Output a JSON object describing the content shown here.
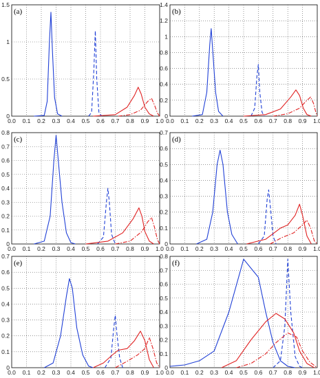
{
  "chart_data": [
    {
      "panel": "(a)",
      "type": "line",
      "xlim": [
        0,
        1
      ],
      "ylim": [
        0,
        1.5
      ],
      "grid": true,
      "xticks": [
        "0.0",
        "0.1",
        "0.2",
        "0.3",
        "0.4",
        "0.5",
        "0.6",
        "0.7",
        "0.8",
        "0.9",
        "1.0"
      ],
      "yticks": [
        "0",
        "0.5",
        "1",
        "1.5"
      ],
      "series": [
        {
          "color": "#1f3fd6",
          "dash": "solid",
          "points": [
            [
              0.15,
              0
            ],
            [
              0.22,
              0.01
            ],
            [
              0.24,
              0.2
            ],
            [
              0.255,
              1.0
            ],
            [
              0.265,
              1.4
            ],
            [
              0.275,
              0.9
            ],
            [
              0.29,
              0.25
            ],
            [
              0.31,
              0.03
            ],
            [
              0.34,
              0
            ]
          ]
        },
        {
          "color": "#1f3fd6",
          "dash": "dashed",
          "points": [
            [
              0.52,
              0
            ],
            [
              0.54,
              0.05
            ],
            [
              0.555,
              0.6
            ],
            [
              0.565,
              1.15
            ],
            [
              0.575,
              0.5
            ],
            [
              0.59,
              0.04
            ],
            [
              0.61,
              0
            ]
          ]
        },
        {
          "color": "#e02020",
          "dash": "solid",
          "points": [
            [
              0.55,
              0
            ],
            [
              0.7,
              0.02
            ],
            [
              0.78,
              0.12
            ],
            [
              0.83,
              0.28
            ],
            [
              0.855,
              0.39
            ],
            [
              0.875,
              0.3
            ],
            [
              0.9,
              0.12
            ],
            [
              0.93,
              0.03
            ],
            [
              0.96,
              0
            ]
          ]
        },
        {
          "color": "#e02020",
          "dash": "dashdot",
          "points": [
            [
              0.72,
              0
            ],
            [
              0.8,
              0.02
            ],
            [
              0.87,
              0.08
            ],
            [
              0.92,
              0.2
            ],
            [
              0.945,
              0.24
            ],
            [
              0.965,
              0.15
            ],
            [
              0.985,
              0.04
            ],
            [
              1.0,
              0
            ]
          ]
        }
      ]
    },
    {
      "panel": "(b)",
      "type": "line",
      "xlim": [
        0,
        1
      ],
      "ylim": [
        0,
        1.4
      ],
      "grid": true,
      "xticks": [
        "0.0",
        "0.1",
        "0.2",
        "0.3",
        "0.4",
        "0.5",
        "0.6",
        "0.7",
        "0.8",
        "0.9",
        "1.0"
      ],
      "yticks": [
        "0",
        "0.2",
        "0.4",
        "0.6",
        "0.8",
        "1",
        "1.2",
        "1.4"
      ],
      "series": [
        {
          "color": "#1f3fd6",
          "dash": "solid",
          "points": [
            [
              0.15,
              0
            ],
            [
              0.22,
              0.02
            ],
            [
              0.25,
              0.3
            ],
            [
              0.27,
              0.9
            ],
            [
              0.28,
              1.1
            ],
            [
              0.295,
              0.7
            ],
            [
              0.31,
              0.3
            ],
            [
              0.33,
              0.06
            ],
            [
              0.36,
              0
            ]
          ]
        },
        {
          "color": "#1f3fd6",
          "dash": "dashed",
          "points": [
            [
              0.55,
              0
            ],
            [
              0.575,
              0.1
            ],
            [
              0.59,
              0.5
            ],
            [
              0.6,
              0.65
            ],
            [
              0.61,
              0.3
            ],
            [
              0.625,
              0.05
            ],
            [
              0.64,
              0
            ]
          ]
        },
        {
          "color": "#e02020",
          "dash": "solid",
          "points": [
            [
              0.5,
              0
            ],
            [
              0.65,
              0.02
            ],
            [
              0.75,
              0.09
            ],
            [
              0.82,
              0.24
            ],
            [
              0.855,
              0.33
            ],
            [
              0.88,
              0.26
            ],
            [
              0.905,
              0.1
            ],
            [
              0.93,
              0.02
            ],
            [
              0.96,
              0
            ]
          ]
        },
        {
          "color": "#e02020",
          "dash": "dashdot",
          "points": [
            [
              0.7,
              0
            ],
            [
              0.8,
              0.03
            ],
            [
              0.88,
              0.1
            ],
            [
              0.93,
              0.2
            ],
            [
              0.955,
              0.24
            ],
            [
              0.975,
              0.16
            ],
            [
              0.99,
              0.05
            ],
            [
              1.0,
              0
            ]
          ]
        }
      ]
    },
    {
      "panel": "(c)",
      "type": "line",
      "xlim": [
        0,
        1
      ],
      "ylim": [
        0,
        0.8
      ],
      "grid": true,
      "xticks": [
        "0.0",
        "0.1",
        "0.2",
        "0.3",
        "0.4",
        "0.5",
        "0.6",
        "0.7",
        "0.8",
        "0.9",
        "1.0"
      ],
      "yticks": [
        "0",
        "0.1",
        "0.2",
        "0.3",
        "0.4",
        "0.5",
        "0.6",
        "0.7",
        "0.8"
      ],
      "series": [
        {
          "color": "#1f3fd6",
          "dash": "solid",
          "points": [
            [
              0.15,
              0
            ],
            [
              0.22,
              0.02
            ],
            [
              0.26,
              0.2
            ],
            [
              0.285,
              0.6
            ],
            [
              0.3,
              0.78
            ],
            [
              0.315,
              0.6
            ],
            [
              0.34,
              0.3
            ],
            [
              0.37,
              0.08
            ],
            [
              0.4,
              0.01
            ],
            [
              0.43,
              0
            ]
          ]
        },
        {
          "color": "#1f3fd6",
          "dash": "dashed",
          "points": [
            [
              0.58,
              0
            ],
            [
              0.62,
              0.05
            ],
            [
              0.64,
              0.3
            ],
            [
              0.65,
              0.4
            ],
            [
              0.66,
              0.3
            ],
            [
              0.675,
              0.07
            ],
            [
              0.7,
              0
            ]
          ]
        },
        {
          "color": "#e02020",
          "dash": "solid",
          "points": [
            [
              0.5,
              0
            ],
            [
              0.65,
              0.02
            ],
            [
              0.75,
              0.08
            ],
            [
              0.82,
              0.18
            ],
            [
              0.86,
              0.26
            ],
            [
              0.88,
              0.2
            ],
            [
              0.9,
              0.09
            ],
            [
              0.93,
              0.02
            ],
            [
              0.96,
              0
            ]
          ]
        },
        {
          "color": "#e02020",
          "dash": "dashdot",
          "points": [
            [
              0.7,
              0
            ],
            [
              0.8,
              0.02
            ],
            [
              0.88,
              0.09
            ],
            [
              0.92,
              0.16
            ],
            [
              0.945,
              0.19
            ],
            [
              0.965,
              0.12
            ],
            [
              0.985,
              0.03
            ],
            [
              1.0,
              0
            ]
          ]
        }
      ]
    },
    {
      "panel": "(d)",
      "type": "line",
      "xlim": [
        0,
        1
      ],
      "ylim": [
        0,
        0.7
      ],
      "grid": true,
      "xticks": [
        "0.0",
        "0.1",
        "0.2",
        "0.3",
        "0.4",
        "0.5",
        "0.6",
        "0.7",
        "0.8",
        "0.9",
        "1.0"
      ],
      "yticks": [
        "0",
        "0.1",
        "0.2",
        "0.3",
        "0.4",
        "0.5",
        "0.6",
        "0.7"
      ],
      "series": [
        {
          "color": "#1f3fd6",
          "dash": "solid",
          "points": [
            [
              0.18,
              0
            ],
            [
              0.25,
              0.03
            ],
            [
              0.29,
              0.2
            ],
            [
              0.32,
              0.5
            ],
            [
              0.34,
              0.59
            ],
            [
              0.36,
              0.5
            ],
            [
              0.39,
              0.2
            ],
            [
              0.42,
              0.06
            ],
            [
              0.46,
              0
            ]
          ]
        },
        {
          "color": "#1f3fd6",
          "dash": "dashed",
          "points": [
            [
              0.6,
              0
            ],
            [
              0.64,
              0.05
            ],
            [
              0.66,
              0.28
            ],
            [
              0.67,
              0.34
            ],
            [
              0.68,
              0.25
            ],
            [
              0.7,
              0.05
            ],
            [
              0.72,
              0
            ]
          ]
        },
        {
          "color": "#e02020",
          "dash": "solid",
          "points": [
            [
              0.52,
              0
            ],
            [
              0.65,
              0.03
            ],
            [
              0.75,
              0.1
            ],
            [
              0.8,
              0.12
            ],
            [
              0.85,
              0.18
            ],
            [
              0.88,
              0.25
            ],
            [
              0.9,
              0.18
            ],
            [
              0.93,
              0.05
            ],
            [
              0.96,
              0
            ]
          ]
        },
        {
          "color": "#e02020",
          "dash": "dashdot",
          "points": [
            [
              0.68,
              0
            ],
            [
              0.76,
              0.04
            ],
            [
              0.84,
              0.07
            ],
            [
              0.9,
              0.12
            ],
            [
              0.93,
              0.15
            ],
            [
              0.955,
              0.1
            ],
            [
              0.98,
              0.02
            ],
            [
              1.0,
              0
            ]
          ]
        }
      ]
    },
    {
      "panel": "(e)",
      "type": "line",
      "xlim": [
        0,
        1
      ],
      "ylim": [
        0,
        0.7
      ],
      "grid": true,
      "xticks": [
        "0.0",
        "0.1",
        "0.2",
        "0.3",
        "0.4",
        "0.5",
        "0.6",
        "0.7",
        "0.8",
        "0.9",
        "1.0"
      ],
      "yticks": [
        "0",
        "0.1",
        "0.2",
        "0.3",
        "0.4",
        "0.5",
        "0.6",
        "0.7"
      ],
      "series": [
        {
          "color": "#1f3fd6",
          "dash": "solid",
          "points": [
            [
              0.22,
              0
            ],
            [
              0.28,
              0.03
            ],
            [
              0.33,
              0.2
            ],
            [
              0.37,
              0.45
            ],
            [
              0.39,
              0.56
            ],
            [
              0.41,
              0.5
            ],
            [
              0.44,
              0.25
            ],
            [
              0.48,
              0.08
            ],
            [
              0.52,
              0.01
            ],
            [
              0.55,
              0
            ]
          ]
        },
        {
          "color": "#1f3fd6",
          "dash": "dashed",
          "points": [
            [
              0.63,
              0
            ],
            [
              0.67,
              0.06
            ],
            [
              0.69,
              0.25
            ],
            [
              0.7,
              0.33
            ],
            [
              0.71,
              0.22
            ],
            [
              0.73,
              0.06
            ],
            [
              0.75,
              0
            ]
          ]
        },
        {
          "color": "#e02020",
          "dash": "solid",
          "points": [
            [
              0.55,
              0
            ],
            [
              0.62,
              0.03
            ],
            [
              0.68,
              0.08
            ],
            [
              0.72,
              0.11
            ],
            [
              0.78,
              0.12
            ],
            [
              0.83,
              0.17
            ],
            [
              0.87,
              0.23
            ],
            [
              0.9,
              0.17
            ],
            [
              0.93,
              0.05
            ],
            [
              0.96,
              0
            ]
          ]
        },
        {
          "color": "#e02020",
          "dash": "dashdot",
          "points": [
            [
              0.7,
              0
            ],
            [
              0.78,
              0.04
            ],
            [
              0.85,
              0.08
            ],
            [
              0.9,
              0.12
            ],
            [
              0.93,
              0.19
            ],
            [
              0.955,
              0.12
            ],
            [
              0.98,
              0.03
            ],
            [
              1.0,
              0
            ]
          ]
        }
      ]
    },
    {
      "panel": "(f)",
      "type": "line",
      "xlim": [
        0,
        1
      ],
      "ylim": [
        0,
        0.8
      ],
      "grid": true,
      "xticks": [
        "0.0",
        "0.1",
        "0.2",
        "0.3",
        "0.4",
        "0.5",
        "0.6",
        "0.7",
        "0.8",
        "0.9",
        "1.0"
      ],
      "yticks": [
        "0",
        "0.1",
        "0.2",
        "0.3",
        "0.4",
        "0.5",
        "0.6",
        "0.7",
        "0.8"
      ],
      "series": [
        {
          "color": "#1f3fd6",
          "dash": "solid",
          "points": [
            [
              0.0,
              0.01
            ],
            [
              0.1,
              0.02
            ],
            [
              0.2,
              0.05
            ],
            [
              0.3,
              0.12
            ],
            [
              0.4,
              0.4
            ],
            [
              0.5,
              0.78
            ],
            [
              0.6,
              0.65
            ],
            [
              0.65,
              0.4
            ],
            [
              0.7,
              0.18
            ],
            [
              0.75,
              0.05
            ],
            [
              0.8,
              0.01
            ],
            [
              0.85,
              0
            ]
          ]
        },
        {
          "color": "#1f3fd6",
          "dash": "dashed",
          "points": [
            [
              0.7,
              0
            ],
            [
              0.75,
              0.05
            ],
            [
              0.78,
              0.3
            ],
            [
              0.8,
              0.78
            ],
            [
              0.82,
              0.4
            ],
            [
              0.85,
              0.08
            ],
            [
              0.88,
              0.01
            ],
            [
              0.9,
              0
            ]
          ]
        },
        {
          "color": "#e02020",
          "dash": "solid",
          "points": [
            [
              0.35,
              0
            ],
            [
              0.45,
              0.05
            ],
            [
              0.55,
              0.2
            ],
            [
              0.65,
              0.33
            ],
            [
              0.72,
              0.39
            ],
            [
              0.78,
              0.35
            ],
            [
              0.84,
              0.25
            ],
            [
              0.88,
              0.12
            ],
            [
              0.93,
              0.03
            ],
            [
              0.98,
              0
            ]
          ]
        },
        {
          "color": "#e02020",
          "dash": "dashdot",
          "points": [
            [
              0.45,
              0
            ],
            [
              0.55,
              0.03
            ],
            [
              0.65,
              0.1
            ],
            [
              0.72,
              0.18
            ],
            [
              0.8,
              0.25
            ],
            [
              0.86,
              0.22
            ],
            [
              0.9,
              0.12
            ],
            [
              0.95,
              0.04
            ],
            [
              1.0,
              0
            ]
          ]
        }
      ]
    }
  ]
}
